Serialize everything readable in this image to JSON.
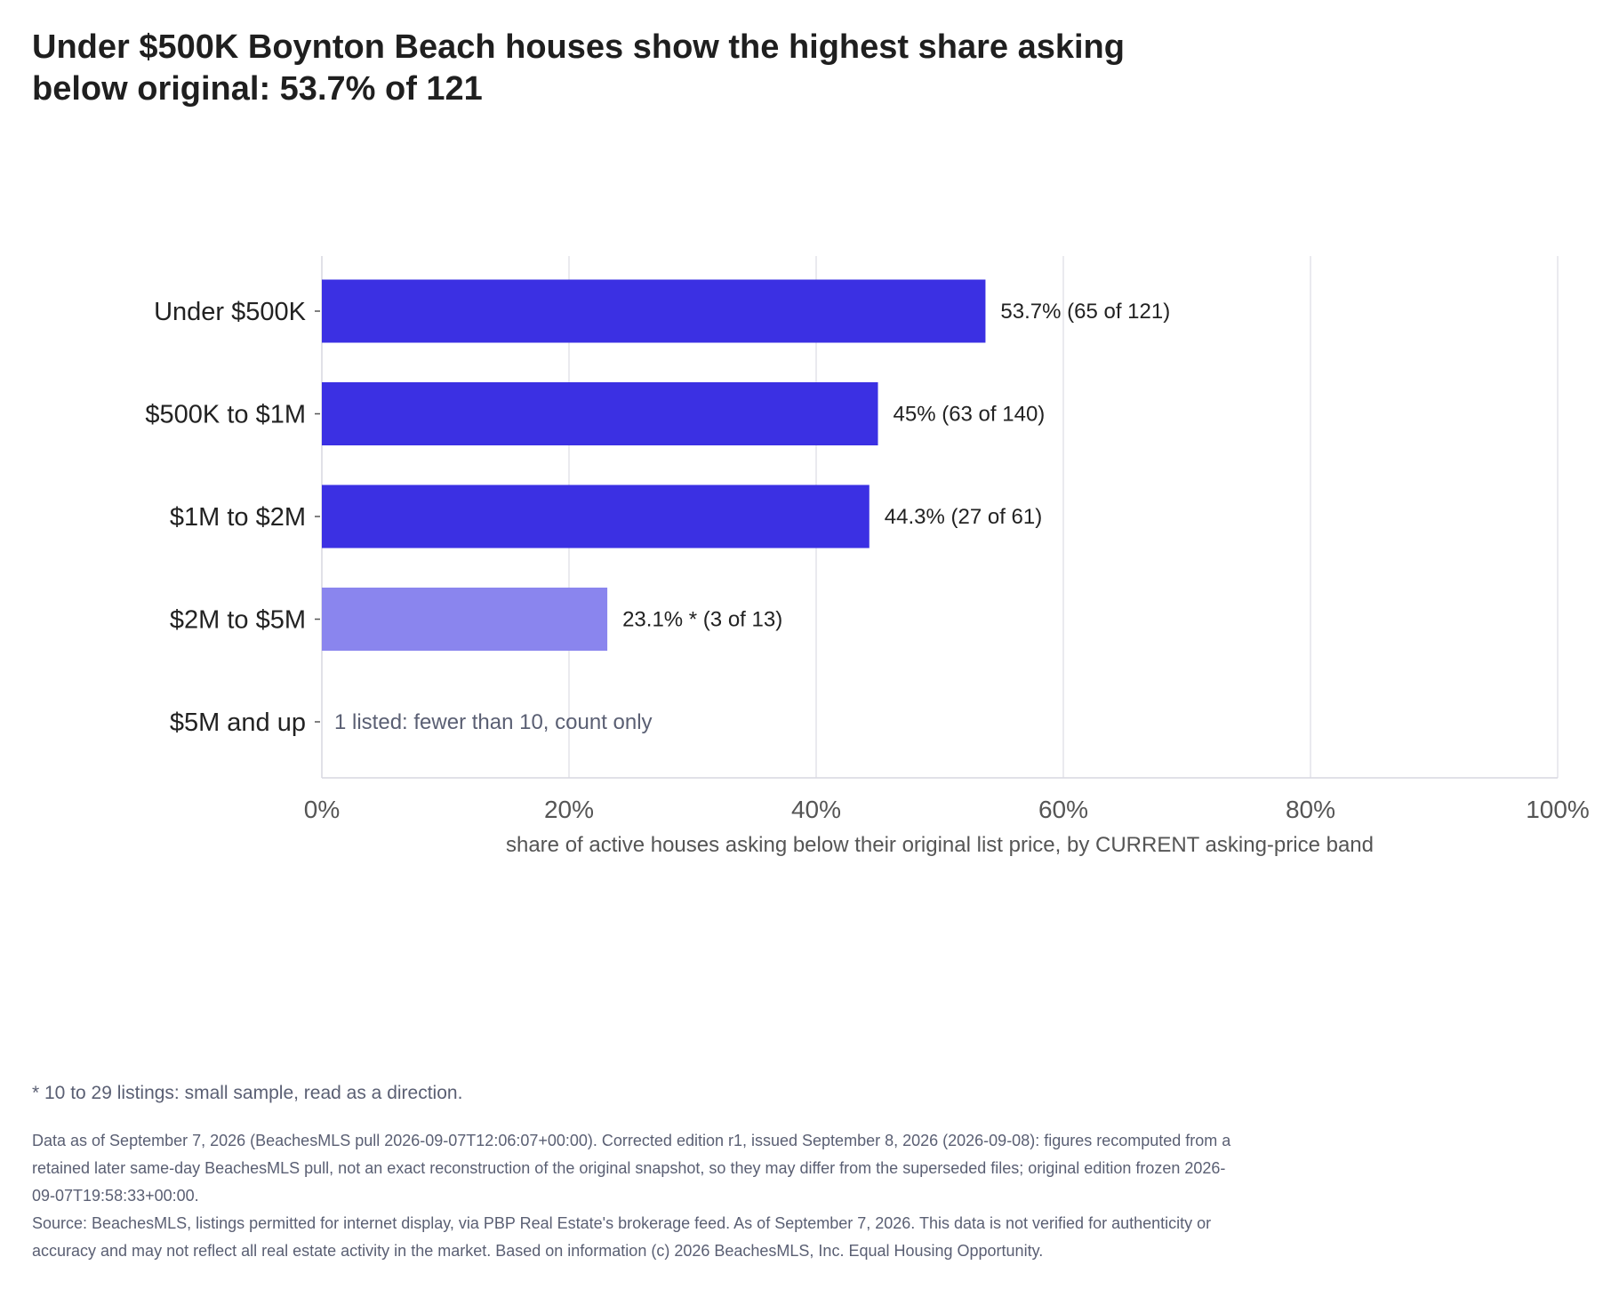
{
  "title": "Under $500K Boynton Beach houses show the highest share asking below original: 53.7% of 121",
  "chart_data": {
    "type": "bar",
    "orientation": "horizontal",
    "categories": [
      "Under $500K",
      "$500K to $1M",
      "$1M to $2M",
      "$2M to $5M",
      "$5M and up"
    ],
    "values": [
      53.7,
      45,
      44.3,
      23.1,
      null
    ],
    "value_labels": [
      "53.7%  (65 of 121)",
      "45%  (63 of 140)",
      "44.3%  (27 of 61)",
      "23.1% *  (3 of 13)",
      "1 listed: fewer than 10, count only"
    ],
    "small_sample": [
      false,
      false,
      false,
      true,
      false
    ],
    "xlim": [
      0,
      100
    ],
    "xticks": [
      0,
      20,
      40,
      60,
      80,
      100
    ],
    "xtick_labels": [
      "0%",
      "20%",
      "40%",
      "60%",
      "80%",
      "100%"
    ],
    "xlabel": "share of active houses asking below their original list price, by CURRENT asking-price band",
    "grid": true,
    "colors": {
      "bar": "#3b30e3",
      "bar_small_sample": "#8a85ee",
      "grid": "#e3e3ea",
      "note_text": "#5a5f73"
    }
  },
  "footnote": "* 10 to 29 listings: small sample, read as a direction.",
  "notes": [
    "Data as of September 7, 2026 (BeachesMLS pull 2026-09-07T12:06:07+00:00). Corrected edition r1, issued September 8, 2026 (2026-09-08): figures recomputed from a retained later same-day BeachesMLS pull, not an exact reconstruction of the original snapshot, so they may differ from the superseded files; original edition frozen 2026-09-07T19:58:33+00:00.",
    "Source: BeachesMLS, listings permitted for internet display, via PBP Real Estate's brokerage feed. As of September 7, 2026. This data is not verified for authenticity or accuracy and may not reflect all real estate activity in the market. Based on information (c) 2026 BeachesMLS, Inc. Equal Housing Opportunity."
  ]
}
